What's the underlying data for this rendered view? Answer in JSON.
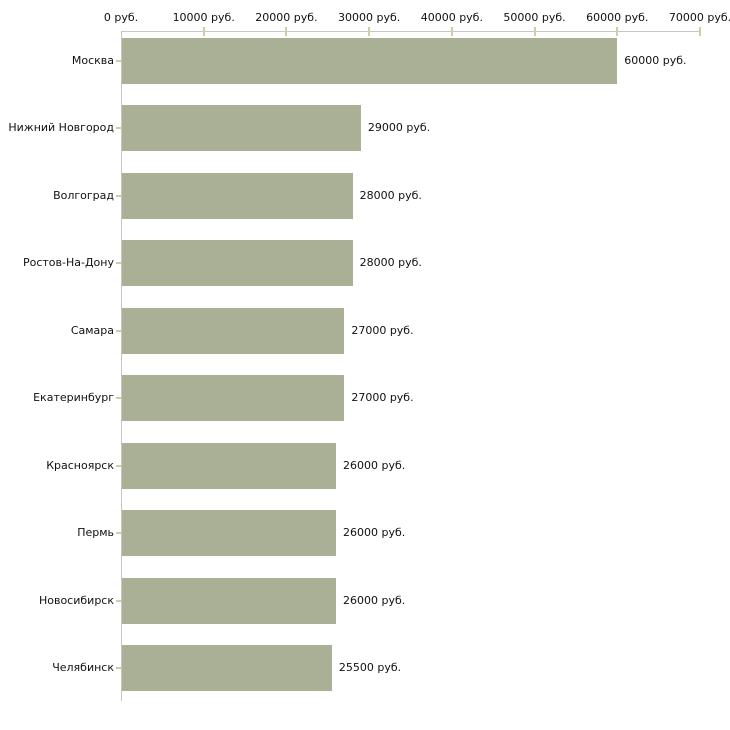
{
  "chart_data": {
    "type": "bar",
    "orientation": "horizontal",
    "title": "",
    "xlabel": "",
    "ylabel": "",
    "unit": "руб.",
    "categories": [
      "Москва",
      "Нижний Новгород",
      "Волгоград",
      "Ростов-На-Дону",
      "Самара",
      "Екатеринбург",
      "Красноярск",
      "Пермь",
      "Новосибирск",
      "Челябинск"
    ],
    "values": [
      60000,
      29000,
      28000,
      28000,
      27000,
      27000,
      26000,
      26000,
      26000,
      25500
    ],
    "value_labels": [
      "60000 руб.",
      "29000 руб.",
      "28000 руб.",
      "28000 руб.",
      "27000 руб.",
      "27000 руб.",
      "26000 руб.",
      "26000 руб.",
      "26000 руб.",
      "25500 руб."
    ],
    "x_axis": {
      "position": "top",
      "min": 0,
      "max": 70000,
      "ticks": [
        0,
        10000,
        20000,
        30000,
        40000,
        50000,
        60000,
        70000
      ],
      "tick_labels": [
        "0 руб.",
        "10000 руб.",
        "20000 руб.",
        "30000 руб.",
        "40000 руб.",
        "50000 руб.",
        "60000 руб.",
        "70000 руб."
      ]
    },
    "grid": false,
    "legend": false,
    "colors": {
      "bar": "#aab096",
      "axis_line": "#c6c6c6",
      "tick": "#cfcda3",
      "text": "#111111",
      "background": "#ffffff"
    }
  }
}
